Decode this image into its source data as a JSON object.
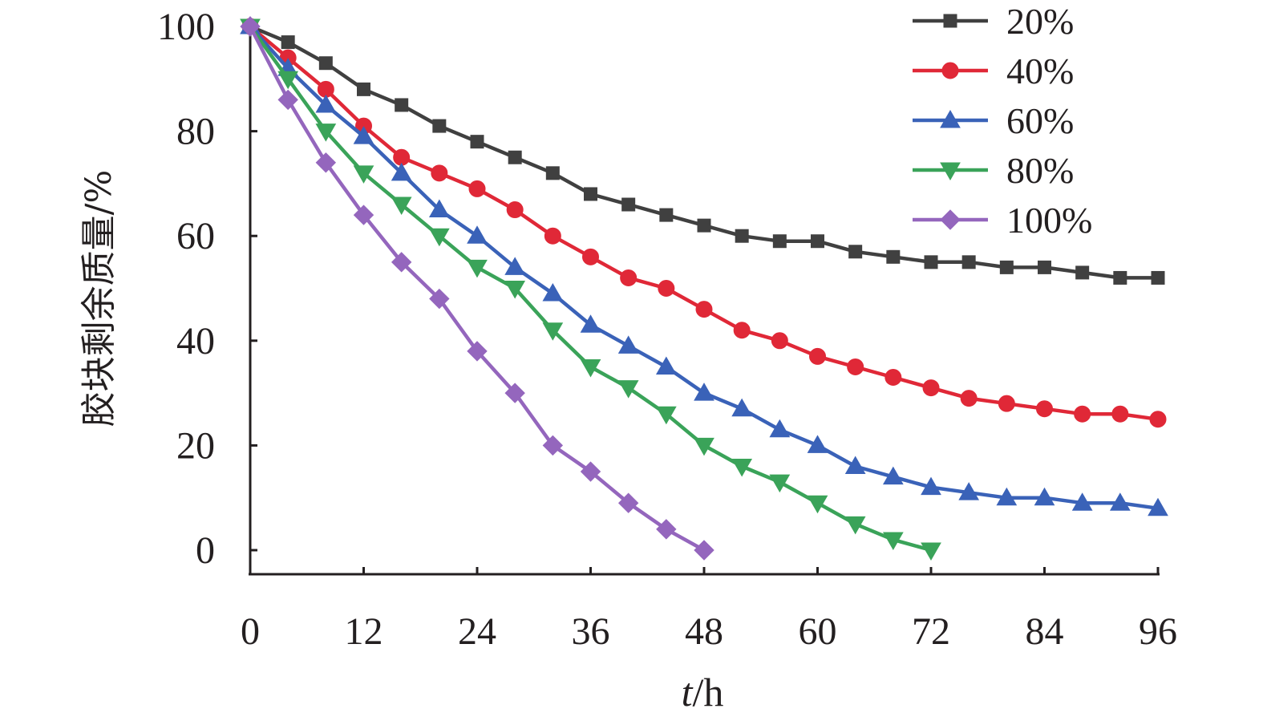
{
  "chart_data": {
    "type": "line",
    "title": "",
    "xlabel": "t/h",
    "xlabel_italic_part": "t",
    "xlabel_unit_part": "/h",
    "ylabel": "胶块剩余质量/%",
    "xlim": [
      0,
      96
    ],
    "ylim": [
      -5,
      100
    ],
    "x_ticks": [
      0,
      12,
      24,
      36,
      48,
      60,
      72,
      84,
      96
    ],
    "y_ticks": [
      0,
      20,
      40,
      60,
      80,
      100
    ],
    "grid": false,
    "legend_position": "top-right",
    "series": [
      {
        "name": "20%",
        "color": "#404040",
        "marker": "square",
        "x": [
          0,
          4,
          8,
          12,
          16,
          20,
          24,
          28,
          32,
          36,
          40,
          44,
          48,
          52,
          56,
          60,
          64,
          68,
          72,
          76,
          80,
          84,
          88,
          92,
          96
        ],
        "values": [
          100,
          97,
          93,
          88,
          85,
          81,
          78,
          75,
          72,
          68,
          66,
          64,
          62,
          60,
          59,
          59,
          57,
          56,
          55,
          55,
          54,
          54,
          53,
          52,
          52
        ]
      },
      {
        "name": "40%",
        "color": "#e02837",
        "marker": "circle",
        "x": [
          0,
          4,
          8,
          12,
          16,
          20,
          24,
          28,
          32,
          36,
          40,
          44,
          48,
          52,
          56,
          60,
          64,
          68,
          72,
          76,
          80,
          84,
          88,
          92,
          96
        ],
        "values": [
          100,
          94,
          88,
          81,
          75,
          72,
          69,
          65,
          60,
          56,
          52,
          50,
          46,
          42,
          40,
          37,
          35,
          33,
          31,
          29,
          28,
          27,
          26,
          26,
          25
        ]
      },
      {
        "name": "60%",
        "color": "#3a62b8",
        "marker": "triangle",
        "x": [
          0,
          4,
          8,
          12,
          16,
          20,
          24,
          28,
          32,
          36,
          40,
          44,
          48,
          52,
          56,
          60,
          64,
          68,
          72,
          76,
          80,
          84,
          88,
          92,
          96
        ],
        "values": [
          100,
          92,
          85,
          79,
          72,
          65,
          60,
          54,
          49,
          43,
          39,
          35,
          30,
          27,
          23,
          20,
          16,
          14,
          12,
          11,
          10,
          10,
          9,
          9,
          8
        ]
      },
      {
        "name": "80%",
        "color": "#3aa359",
        "marker": "triangle-down",
        "x": [
          0,
          4,
          8,
          12,
          16,
          20,
          24,
          28,
          32,
          36,
          40,
          44,
          48,
          52,
          56,
          60,
          64,
          68,
          72
        ],
        "values": [
          100,
          90,
          80,
          72,
          66,
          60,
          54,
          50,
          42,
          35,
          31,
          26,
          20,
          16,
          13,
          9,
          5,
          2,
          0
        ]
      },
      {
        "name": "100%",
        "color": "#9466bd",
        "marker": "diamond",
        "x": [
          0,
          4,
          8,
          12,
          16,
          20,
          24,
          28,
          32,
          36,
          40,
          44,
          48
        ],
        "values": [
          100,
          86,
          74,
          64,
          55,
          48,
          38,
          30,
          20,
          15,
          9,
          4,
          0
        ]
      }
    ]
  }
}
